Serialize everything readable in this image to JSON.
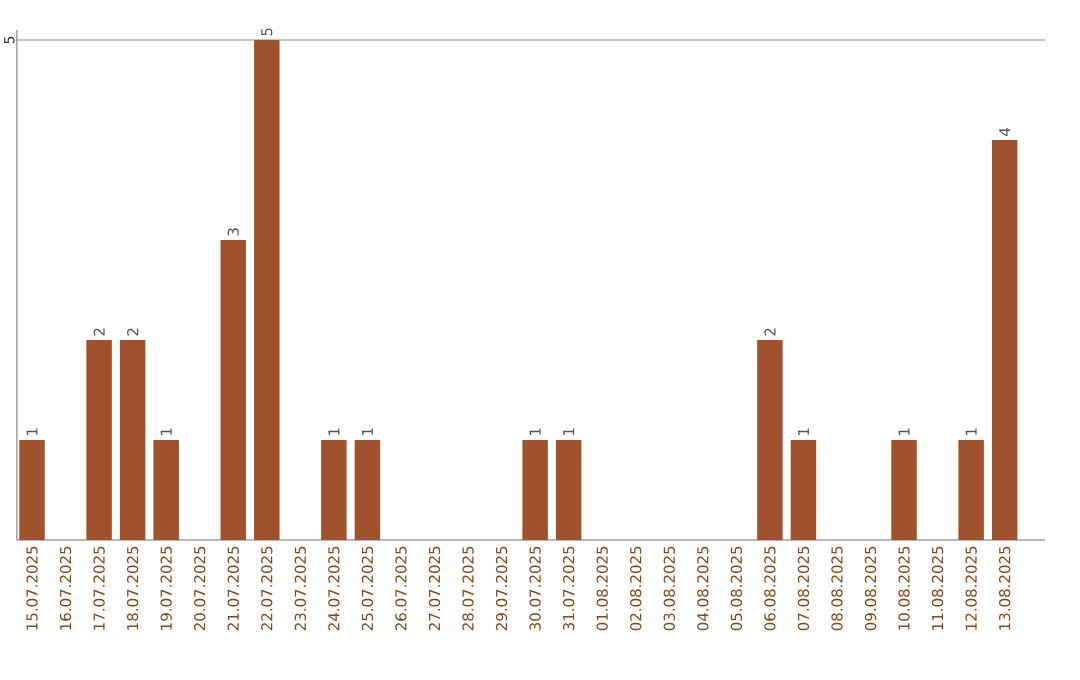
{
  "chart_data": {
    "type": "bar",
    "categories": [
      "15.07.2025",
      "16.07.2025",
      "17.07.2025",
      "18.07.2025",
      "19.07.2025",
      "20.07.2025",
      "21.07.2025",
      "22.07.2025",
      "23.07.2025",
      "24.07.2025",
      "25.07.2025",
      "26.07.2025",
      "27.07.2025",
      "28.07.2025",
      "29.07.2025",
      "30.07.2025",
      "31.07.2025",
      "01.08.2025",
      "02.08.2025",
      "03.08.2025",
      "04.08.2025",
      "05.08.2025",
      "06.08.2025",
      "07.08.2025",
      "08.08.2025",
      "09.08.2025",
      "10.08.2025",
      "11.08.2025",
      "12.08.2025",
      "13.08.2025"
    ],
    "values": [
      1,
      0,
      2,
      2,
      1,
      0,
      3,
      5,
      0,
      1,
      1,
      0,
      0,
      0,
      0,
      1,
      1,
      0,
      0,
      0,
      0,
      0,
      2,
      1,
      0,
      0,
      1,
      0,
      1,
      4
    ],
    "value_labels": [
      "1",
      null,
      "2",
      "2",
      "1",
      null,
      "3",
      "5",
      null,
      "1",
      "1",
      null,
      null,
      null,
      null,
      "1",
      "1",
      null,
      null,
      null,
      null,
      null,
      "2",
      "1",
      null,
      null,
      "1",
      null,
      "1",
      "4"
    ],
    "color": "#a0522d",
    "ylim": [
      0,
      5.1
    ],
    "yticks": [
      5
    ],
    "grid": "y"
  }
}
